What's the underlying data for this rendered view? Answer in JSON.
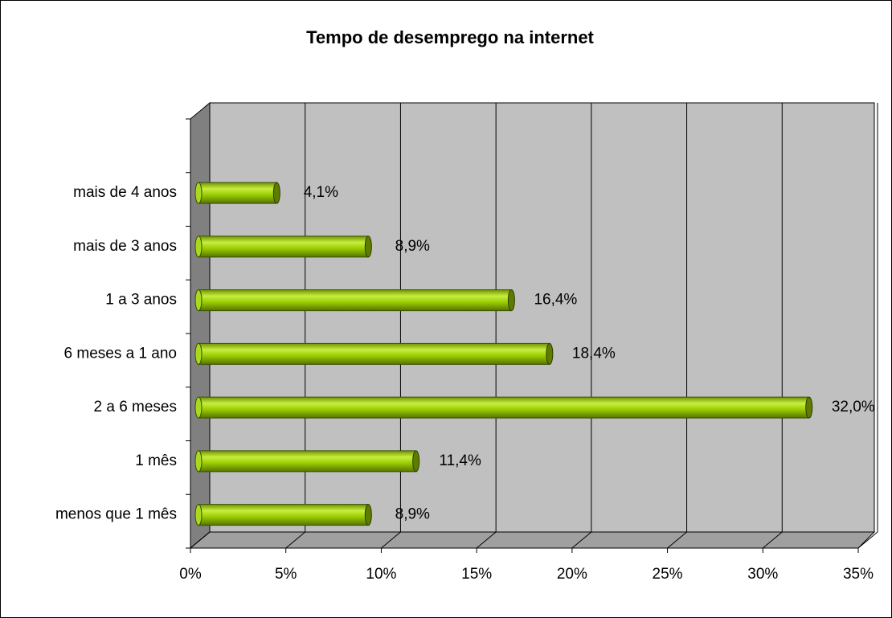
{
  "chart_data": {
    "type": "bar",
    "orientation": "horizontal",
    "title": "Tempo de desemprego na internet",
    "categories": [
      "menos que 1 mês",
      "1 mês",
      "2 a 6 meses",
      "6 meses a 1 ano",
      "1 a 3 anos",
      "mais de 3 anos",
      "mais de 4 anos"
    ],
    "values": [
      8.9,
      11.4,
      32.0,
      18.4,
      16.4,
      8.9,
      4.1
    ],
    "value_labels": [
      "8,9%",
      "11,4%",
      "32,0%",
      "18,4%",
      "16,4%",
      "8,9%",
      "4,1%"
    ],
    "color": "#99cc00",
    "xlim": [
      0,
      35
    ],
    "xticks": [
      {
        "value": 0,
        "label": "0%"
      },
      {
        "value": 5,
        "label": "5%"
      },
      {
        "value": 10,
        "label": "10%"
      },
      {
        "value": 15,
        "label": "15%"
      },
      {
        "value": 20,
        "label": "20%"
      },
      {
        "value": 25,
        "label": "25%"
      },
      {
        "value": 30,
        "label": "30%"
      },
      {
        "value": 35,
        "label": "35%"
      }
    ],
    "grid": true
  }
}
